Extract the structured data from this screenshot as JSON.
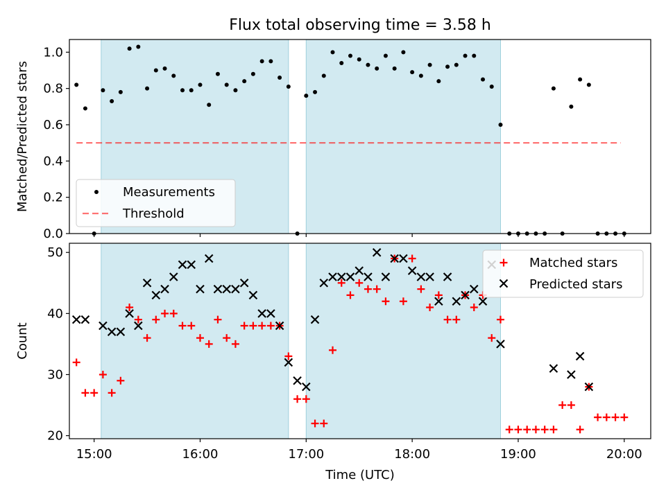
{
  "title": "Flux total observing time = 3.58 h",
  "colors": {
    "shade": "#add8e6",
    "threshold": "#ff0000",
    "matched": "#ff0000",
    "predicted": "#000000",
    "measurement": "#000000"
  },
  "chart_data": [
    {
      "type": "scatter",
      "ylabel": "Matched/Predicted stars",
      "ylim": [
        0.0,
        1.07
      ],
      "yticks": [
        "0.0",
        "0.2",
        "0.4",
        "0.6",
        "0.8",
        "1.0"
      ],
      "xlim": [
        "14:46",
        "20:15"
      ],
      "shaded_intervals": [
        [
          "15:04",
          "16:50"
        ],
        [
          "17:00",
          "18:50"
        ]
      ],
      "threshold": {
        "y": 0.5,
        "x": [
          "14:50",
          "19:58"
        ]
      },
      "legend": {
        "placement": "lower-left",
        "entries": [
          "Measurements",
          "Threshold"
        ]
      },
      "series": [
        {
          "name": "Measurements",
          "marker": "dot",
          "x": [
            "14:50",
            "14:55",
            "15:00",
            "15:05",
            "15:10",
            "15:15",
            "15:20",
            "15:25",
            "15:30",
            "15:35",
            "15:40",
            "15:45",
            "15:50",
            "15:55",
            "16:00",
            "16:05",
            "16:10",
            "16:15",
            "16:20",
            "16:25",
            "16:30",
            "16:35",
            "16:40",
            "16:45",
            "16:50",
            "16:55",
            "17:00",
            "17:05",
            "17:10",
            "17:15",
            "17:20",
            "17:25",
            "17:30",
            "17:35",
            "17:40",
            "17:45",
            "17:50",
            "17:55",
            "18:00",
            "18:05",
            "18:10",
            "18:15",
            "18:20",
            "18:25",
            "18:30",
            "18:35",
            "18:40",
            "18:45",
            "18:50",
            "18:55",
            "19:00",
            "19:05",
            "19:10",
            "19:15",
            "19:20",
            "19:25",
            "19:30",
            "19:35",
            "19:40",
            "19:45",
            "19:50",
            "19:55",
            "20:00"
          ],
          "y": [
            0.82,
            0.69,
            0.0,
            0.79,
            0.73,
            0.78,
            1.02,
            1.03,
            0.8,
            0.9,
            0.91,
            0.87,
            0.79,
            0.79,
            0.82,
            0.71,
            0.88,
            0.82,
            0.79,
            0.84,
            0.88,
            0.95,
            0.95,
            0.86,
            0.81,
            0.0,
            0.76,
            0.78,
            0.87,
            1.0,
            0.94,
            0.98,
            0.96,
            0.93,
            0.91,
            0.98,
            0.91,
            1.0,
            0.89,
            0.87,
            0.93,
            0.84,
            0.92,
            0.93,
            0.98,
            0.98,
            0.85,
            0.81,
            0.6,
            0.0,
            0.0,
            0.0,
            0.0,
            0.0,
            0.8,
            0.0,
            0.7,
            0.85,
            0.82,
            0.0,
            0.0,
            0.0,
            0.0
          ]
        }
      ]
    },
    {
      "type": "scatter",
      "xlabel": "Time (UTC)",
      "ylabel": "Count",
      "ylim": [
        19.5,
        51.5
      ],
      "yticks": [
        "20",
        "30",
        "40",
        "50"
      ],
      "xlim": [
        "14:46",
        "20:15"
      ],
      "xticks": [
        "15:00",
        "16:00",
        "17:00",
        "18:00",
        "19:00",
        "20:00"
      ],
      "shaded_intervals": [
        [
          "15:04",
          "16:50"
        ],
        [
          "17:00",
          "18:50"
        ]
      ],
      "legend": {
        "placement": "top-right",
        "entries": [
          "Matched stars",
          "Predicted stars"
        ]
      },
      "series": [
        {
          "name": "Matched stars",
          "marker": "plus",
          "x": [
            "14:50",
            "14:55",
            "15:00",
            "15:05",
            "15:10",
            "15:15",
            "15:20",
            "15:25",
            "15:30",
            "15:35",
            "15:40",
            "15:45",
            "15:50",
            "15:55",
            "16:00",
            "16:05",
            "16:10",
            "16:15",
            "16:20",
            "16:25",
            "16:30",
            "16:35",
            "16:40",
            "16:45",
            "16:50",
            "16:55",
            "17:00",
            "17:05",
            "17:10",
            "17:15",
            "17:20",
            "17:25",
            "17:30",
            "17:35",
            "17:40",
            "17:45",
            "17:50",
            "17:55",
            "18:00",
            "18:05",
            "18:10",
            "18:15",
            "18:20",
            "18:25",
            "18:30",
            "18:35",
            "18:40",
            "18:45",
            "18:50",
            "18:55",
            "19:00",
            "19:05",
            "19:10",
            "19:15",
            "19:20",
            "19:25",
            "19:30",
            "19:35",
            "19:40",
            "19:45",
            "19:50",
            "19:55",
            "20:00"
          ],
          "y": [
            32,
            27,
            27,
            30,
            27,
            29,
            41,
            39,
            36,
            39,
            40,
            40,
            38,
            38,
            36,
            35,
            39,
            36,
            35,
            38,
            38,
            38,
            38,
            38,
            33,
            26,
            26,
            22,
            22,
            34,
            45,
            43,
            45,
            44,
            44,
            42,
            49,
            42,
            49,
            44,
            41,
            43,
            39,
            39,
            43,
            41,
            43,
            36,
            39,
            21,
            21,
            21,
            21,
            21,
            21,
            25,
            25,
            21,
            28,
            23,
            23,
            23,
            23
          ]
        },
        {
          "name": "Predicted stars",
          "marker": "x",
          "x": [
            "14:50",
            "14:55",
            "15:05",
            "15:10",
            "15:15",
            "15:20",
            "15:25",
            "15:30",
            "15:35",
            "15:40",
            "15:45",
            "15:50",
            "15:55",
            "16:00",
            "16:05",
            "16:10",
            "16:15",
            "16:20",
            "16:25",
            "16:30",
            "16:35",
            "16:40",
            "16:45",
            "16:50",
            "16:55",
            "17:00",
            "17:05",
            "17:10",
            "17:15",
            "17:20",
            "17:25",
            "17:30",
            "17:35",
            "17:40",
            "17:45",
            "17:50",
            "17:55",
            "18:00",
            "18:05",
            "18:10",
            "18:15",
            "18:20",
            "18:25",
            "18:30",
            "18:35",
            "18:40",
            "18:45",
            "18:50",
            "19:20",
            "19:30",
            "19:35",
            "19:40"
          ],
          "y": [
            39,
            39,
            38,
            37,
            37,
            40,
            38,
            45,
            43,
            44,
            46,
            48,
            48,
            44,
            49,
            44,
            44,
            44,
            45,
            43,
            40,
            40,
            38,
            32,
            29,
            28,
            39,
            45,
            46,
            46,
            46,
            47,
            46,
            50,
            46,
            49,
            49,
            47,
            46,
            46,
            42,
            46,
            42,
            43,
            44,
            42,
            48,
            35,
            31,
            30,
            33,
            28
          ]
        }
      ]
    }
  ]
}
